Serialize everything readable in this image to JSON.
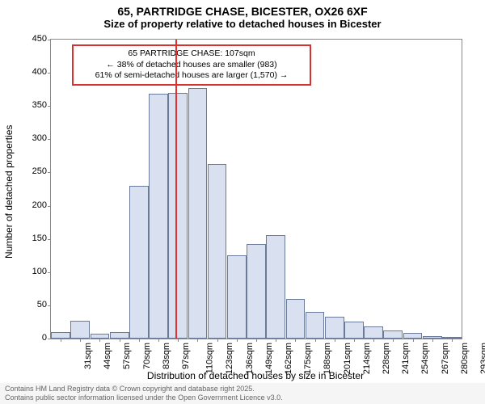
{
  "title_main": "65, PARTRIDGE CHASE, BICESTER, OX26 6XF",
  "title_sub": "Size of property relative to detached houses in Bicester",
  "y_axis_label": "Number of detached properties",
  "x_axis_label": "Distribution of detached houses by size in Bicester",
  "footer_line1": "Contains HM Land Registry data © Crown copyright and database right 2025.",
  "footer_line2": "Contains public sector information licensed under the Open Government Licence v3.0.",
  "annotation": {
    "line1": "65 PARTRIDGE CHASE: 107sqm",
    "line2": "← 38% of detached houses are smaller (983)",
    "line3": "61% of semi-detached houses are larger (1,570) →"
  },
  "chart": {
    "type": "histogram",
    "ylim": [
      0,
      450
    ],
    "ytick_step": 50,
    "x_categories": [
      "31sqm",
      "44sqm",
      "57sqm",
      "70sqm",
      "83sqm",
      "97sqm",
      "110sqm",
      "123sqm",
      "136sqm",
      "149sqm",
      "162sqm",
      "175sqm",
      "188sqm",
      "201sqm",
      "214sqm",
      "228sqm",
      "241sqm",
      "254sqm",
      "267sqm",
      "280sqm",
      "293sqm"
    ],
    "values": [
      10,
      27,
      7,
      10,
      230,
      368,
      370,
      377,
      263,
      125,
      142,
      156,
      60,
      40,
      33,
      25,
      18,
      12,
      8,
      4,
      3
    ],
    "bar_fill": "#d9e0f0",
    "bar_border": "#6b7a99",
    "background_color": "#ffffff",
    "marker_value": 107,
    "marker_color": "#e03030",
    "annotation_border": "#d93030",
    "axis_fontsize": 11,
    "label_fontsize": 12,
    "title_fontsize": 14
  }
}
